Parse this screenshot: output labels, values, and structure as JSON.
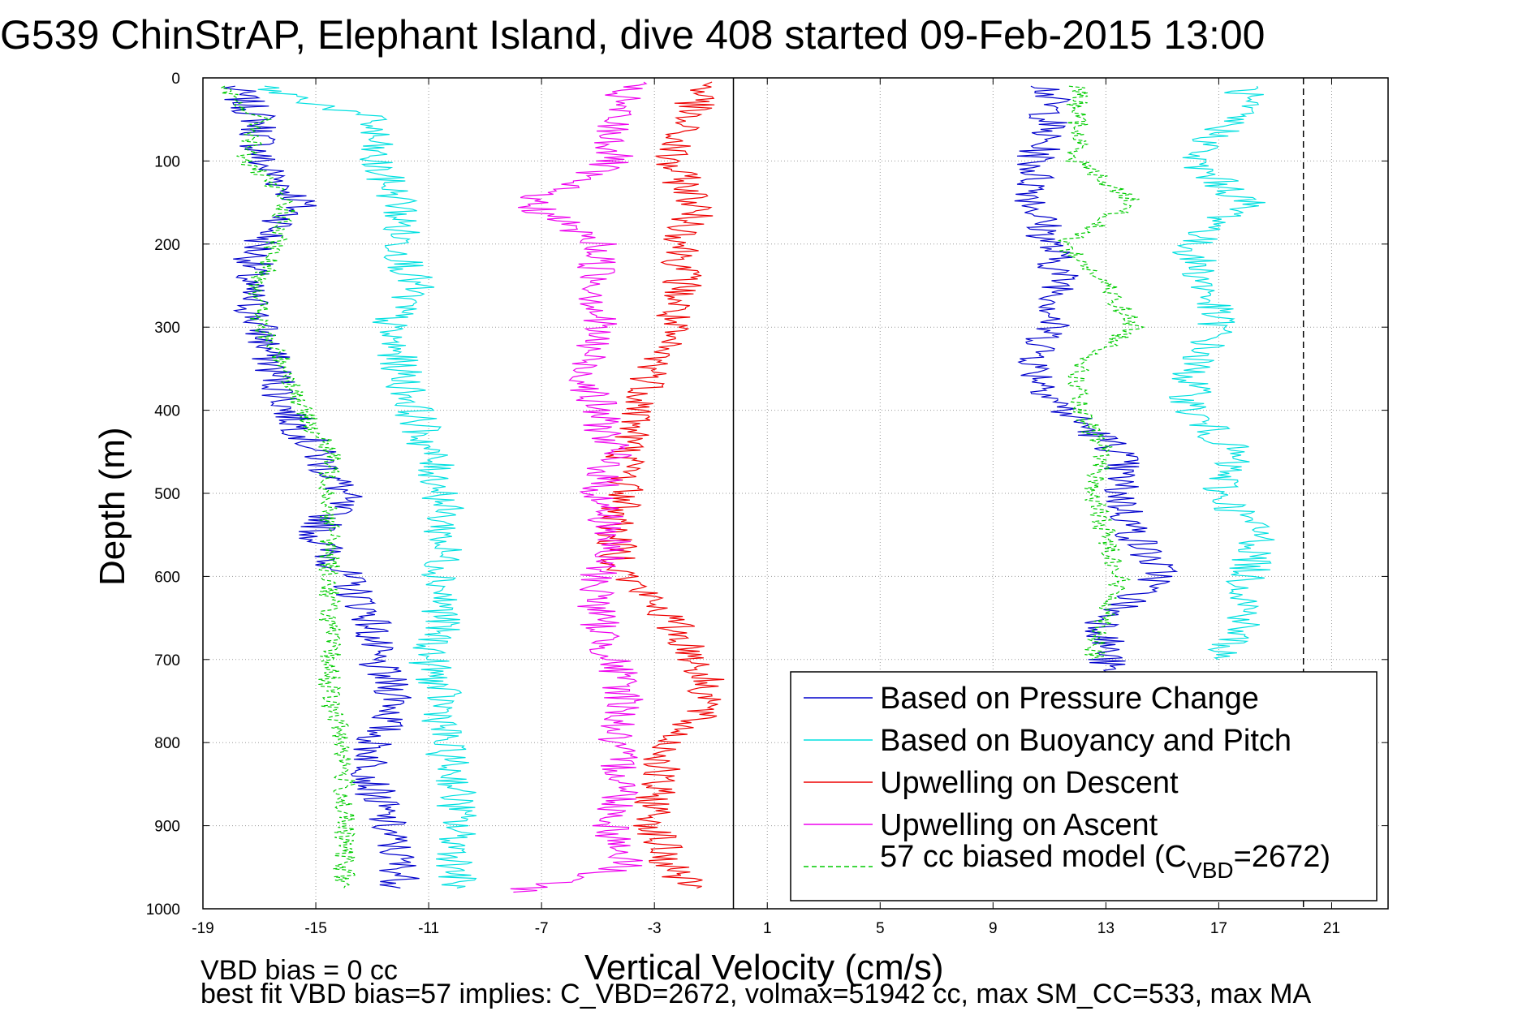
{
  "chart_data": {
    "type": "line",
    "title": "G539 ChinStrAP, Elephant Island, dive 408 started 09-Feb-2015 13:00",
    "xlabel": "Vertical Velocity (cm/s)",
    "ylabel": "Depth (m)",
    "xlim": [
      -19,
      23
    ],
    "ylim": [
      0,
      1000
    ],
    "y_inverted": true,
    "grid": true,
    "x_ticks": [
      -19,
      -15,
      -11,
      -7,
      -3,
      1,
      5,
      9,
      13,
      17,
      21
    ],
    "y_ticks": [
      0,
      100,
      200,
      300,
      400,
      500,
      600,
      700,
      800,
      900,
      1000
    ],
    "vertical_lines": [
      {
        "x": -0.2,
        "style": "solid",
        "color": "#000000"
      },
      {
        "x": 20.0,
        "style": "dashed",
        "color": "#000000"
      }
    ],
    "legend_position": "bottom-right",
    "legend": [
      {
        "label": "Based on Pressure Change",
        "color": "#0000cc",
        "style": "solid"
      },
      {
        "label": "Based on Buoyancy and Pitch",
        "color": "#00e0e0",
        "style": "solid"
      },
      {
        "label": "Upwelling on Descent",
        "color": "#ee0000",
        "style": "solid"
      },
      {
        "label": "Upwelling on Ascent",
        "color": "#ee00ee",
        "style": "solid"
      },
      {
        "label_main": "57 cc biased model (C",
        "label_sub": "VBD",
        "label_tail": "=2672)",
        "color": "#00cc00",
        "style": "dashed"
      }
    ],
    "series": [
      {
        "name": "Based on Pressure Change",
        "color": "#0000cc",
        "style": "solid",
        "depth": [
          10,
          50,
          100,
          150,
          200,
          250,
          300,
          350,
          400,
          450,
          500,
          550,
          600,
          650,
          700,
          750,
          800,
          850,
          900,
          950,
          975
        ],
        "x": [
          -18,
          -17,
          -17,
          -15.5,
          -17,
          -17.5,
          -17,
          -16.5,
          -16,
          -15,
          -14,
          -15,
          -14,
          -13,
          -13,
          -12,
          -13,
          -13,
          -12.5,
          -12,
          -12
        ]
      },
      {
        "name": "Based on Pressure Change",
        "color": "#0000cc",
        "style": "solid",
        "depth": [
          10,
          50,
          100,
          150,
          200,
          250,
          300,
          350,
          400,
          450,
          500,
          550,
          600,
          650,
          700,
          715
        ],
        "x": [
          11,
          11,
          10.5,
          10.5,
          11,
          11.5,
          11,
          10.5,
          11.5,
          13.5,
          13.5,
          14,
          15,
          13,
          13,
          13
        ]
      },
      {
        "name": "Based on Buoyancy and Pitch",
        "color": "#00e0e0",
        "style": "solid",
        "depth": [
          10,
          50,
          100,
          150,
          200,
          250,
          300,
          350,
          400,
          450,
          500,
          550,
          600,
          650,
          700,
          750,
          800,
          850,
          900,
          950,
          975
        ],
        "x": [
          -17,
          -13,
          -13,
          -12,
          -12,
          -11.5,
          -12.5,
          -12,
          -11.5,
          -11,
          -10.5,
          -10.5,
          -10.5,
          -10.5,
          -11,
          -10.5,
          -10.5,
          -10,
          -10,
          -10,
          -10
        ]
      },
      {
        "name": "Based on Buoyancy and Pitch",
        "color": "#00e0e0",
        "style": "solid",
        "depth": [
          10,
          50,
          100,
          150,
          200,
          250,
          300,
          350,
          400,
          450,
          500,
          550,
          600,
          650,
          700
        ],
        "x": [
          18,
          17.5,
          16,
          18,
          16,
          16.5,
          17,
          16,
          16,
          17.5,
          17,
          18.5,
          18,
          18,
          17
        ]
      },
      {
        "name": "Upwelling on Descent",
        "color": "#ee0000",
        "style": "solid",
        "depth": [
          5,
          50,
          100,
          150,
          200,
          250,
          300,
          350,
          400,
          450,
          500,
          550,
          600,
          650,
          700,
          750,
          800,
          850,
          900,
          950,
          975
        ],
        "x": [
          -1,
          -2,
          -2.5,
          -1.5,
          -2,
          -2,
          -2.5,
          -3,
          -3.5,
          -4,
          -4,
          -4.5,
          -4,
          -2.5,
          -1.5,
          -1,
          -2.5,
          -3,
          -3,
          -2.5,
          -1.5
        ]
      },
      {
        "name": "Upwelling on Ascent",
        "color": "#ee00ee",
        "style": "solid",
        "depth": [
          5,
          50,
          100,
          150,
          200,
          250,
          300,
          350,
          400,
          450,
          500,
          550,
          600,
          650,
          700,
          750,
          800,
          850,
          900,
          950,
          980
        ],
        "x": [
          -4,
          -4.5,
          -4.5,
          -7.5,
          -5,
          -5,
          -5,
          -5.5,
          -5,
          -4.5,
          -5,
          -4.5,
          -5,
          -5,
          -4.5,
          -4,
          -4.5,
          -4,
          -4.5,
          -4,
          -8
        ]
      },
      {
        "name": "57 cc biased model",
        "color": "#00cc00",
        "style": "dashed",
        "depth": [
          10,
          50,
          100,
          150,
          200,
          250,
          300,
          350,
          400,
          450,
          500,
          550,
          600,
          650,
          700,
          750,
          800,
          850,
          900,
          950,
          975
        ],
        "x": [
          -18.5,
          -17,
          -17.5,
          -16,
          -16.5,
          -17,
          -17,
          -16,
          -15.5,
          -14.5,
          -14.5,
          -14.5,
          -14.5,
          -14.5,
          -14.5,
          -14.5,
          -14,
          -14,
          -14,
          -14,
          -14
        ]
      },
      {
        "name": "57 cc biased model",
        "color": "#00cc00",
        "style": "dashed",
        "depth": [
          10,
          50,
          100,
          150,
          200,
          250,
          300,
          350,
          400,
          450,
          500,
          550,
          600,
          650,
          700
        ],
        "x": [
          12,
          12,
          12,
          14,
          11.5,
          13,
          14,
          12,
          12,
          13,
          12.5,
          13,
          13.5,
          13,
          12.5
        ]
      }
    ],
    "footer_lines": [
      "VBD bias = 0 cc",
      "best fit VBD bias=57 implies: C_VBD=2672, volmax=51942 cc, max SM_CC=533, max MA"
    ]
  }
}
